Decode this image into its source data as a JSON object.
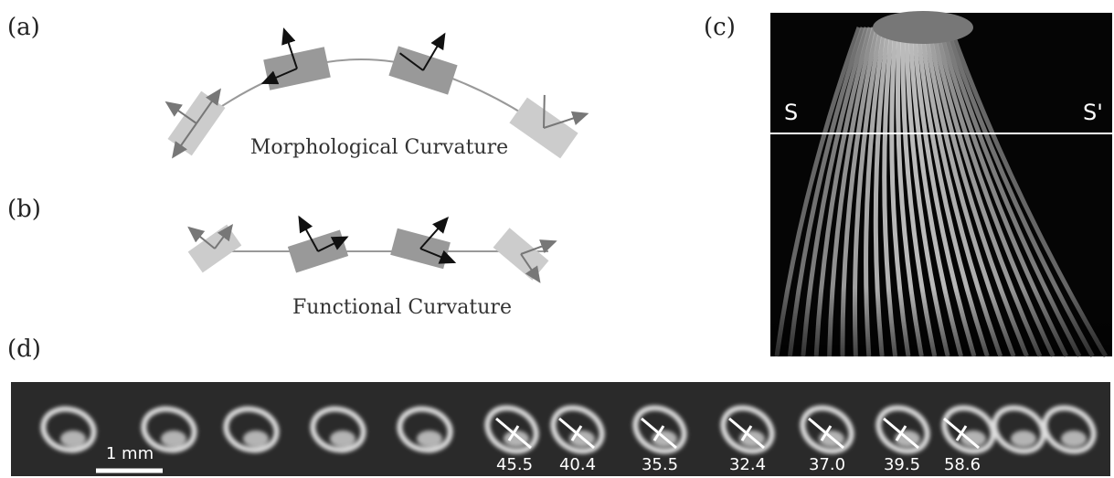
{
  "panels": {
    "a": {
      "label": "(a)",
      "caption": "Morphological Curvature"
    },
    "b": {
      "label": "(b)",
      "caption": "Functional Curvature"
    },
    "c": {
      "label": "(c)",
      "section_left": "S",
      "section_right": "S'"
    },
    "d": {
      "label": "(d)",
      "scale_bar": "1 mm",
      "angles": [
        "45.5",
        "40.4",
        "35.5",
        "32.4",
        "37.0",
        "39.5",
        "58.6"
      ]
    }
  }
}
